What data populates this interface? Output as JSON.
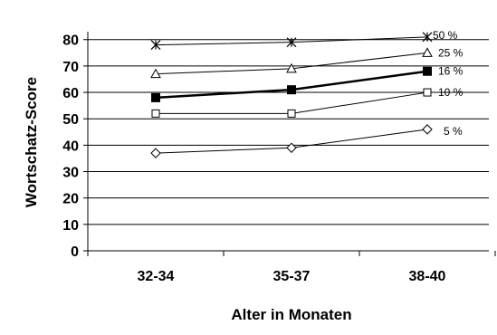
{
  "chart_data": {
    "type": "line",
    "categories": [
      "32-34",
      "35-37",
      "38-40"
    ],
    "xlabel": "Alter in Monaten",
    "ylabel": "Wortschatz-Score",
    "ylim": [
      0,
      80
    ],
    "yticks": [
      0,
      10,
      20,
      30,
      40,
      50,
      60,
      70,
      80
    ],
    "grid": true,
    "legend": "labels at right end of each line",
    "series": [
      {
        "name": "50 %",
        "marker": "asterisk",
        "values": [
          78,
          79,
          81
        ],
        "bold": false
      },
      {
        "name": "25 %",
        "marker": "triangle-open",
        "values": [
          67,
          69,
          75
        ],
        "bold": false
      },
      {
        "name": "16 %",
        "marker": "square-filled",
        "values": [
          58,
          61,
          68
        ],
        "bold": true
      },
      {
        "name": "10 %",
        "marker": "square-open",
        "values": [
          52,
          52,
          60
        ],
        "bold": false
      },
      {
        "name": "5 %",
        "marker": "diamond-open",
        "values": [
          37,
          39,
          46
        ],
        "bold": false
      }
    ]
  }
}
